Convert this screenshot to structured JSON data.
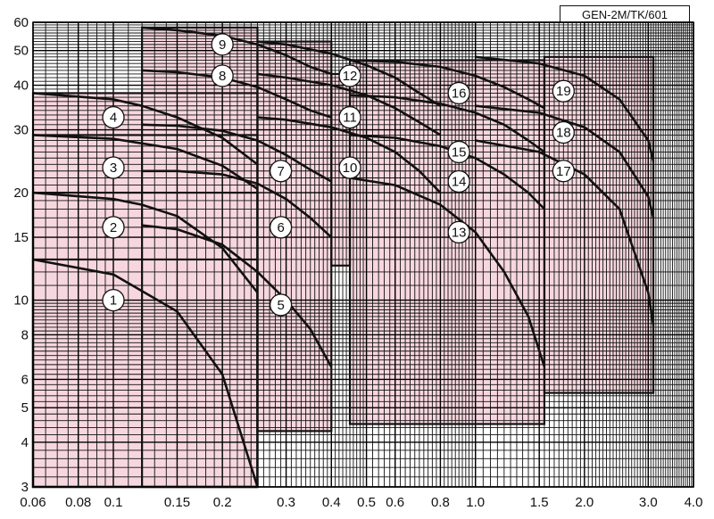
{
  "tag": "GEN-2M/TK/601",
  "chart_data": {
    "type": "area",
    "title": "",
    "xlabel": "",
    "ylabel": "",
    "x_scale": "log",
    "y_scale": "log",
    "xlim": [
      0.06,
      4.0
    ],
    "ylim": [
      3,
      60
    ],
    "x_tick_labels": [
      "0.06",
      "0.08",
      "0.1",
      "0.15",
      "0.2",
      "0.3",
      "0.4",
      "0.5",
      "0.6",
      "0.8",
      "1.0",
      "1.5",
      "2.0",
      "3.0",
      "4.0"
    ],
    "y_tick_labels": [
      "3",
      "4",
      "5",
      "6",
      "8",
      "10",
      "15",
      "20",
      "30",
      "40",
      "50",
      "60"
    ],
    "grid": true,
    "colors": {
      "fill": "#f7d7df",
      "line": "#111111",
      "grid": "#111111"
    },
    "regions": [
      {
        "x": [
          0.06,
          0.25
        ],
        "y_min": 3,
        "y_max": 13.0
      },
      {
        "x": [
          0.06,
          0.25
        ],
        "y_min": 3,
        "y_max": 20.0
      },
      {
        "x": [
          0.06,
          0.25
        ],
        "y_min": 3,
        "y_max": 29.0
      },
      {
        "x": [
          0.06,
          0.25
        ],
        "y_min": 3,
        "y_max": 38.0
      },
      {
        "x": [
          0.12,
          0.25
        ],
        "y_min": 3,
        "y_max": 58.0
      },
      {
        "x": [
          0.25,
          0.4
        ],
        "y_min": 4.3,
        "y_max": 53.0
      },
      {
        "x": [
          0.4,
          0.45
        ],
        "y_min": 12.5,
        "y_max": 43.0
      },
      {
        "x": [
          0.45,
          1.55
        ],
        "y_min": 4.5,
        "y_max": 47.0
      },
      {
        "x": [
          1.55,
          3.1
        ],
        "y_min": 5.5,
        "y_max": 48.0
      }
    ],
    "curves": [
      {
        "label": "1",
        "x": [
          0.06,
          0.1,
          0.15,
          0.2,
          0.25
        ],
        "y": [
          13.0,
          11.8,
          9.3,
          6.2,
          3.0
        ]
      },
      {
        "label": "2",
        "x": [
          0.06,
          0.1,
          0.12,
          0.15,
          0.2,
          0.25
        ],
        "y": [
          20.0,
          19.2,
          18.5,
          17.2,
          14.0,
          10.5
        ]
      },
      {
        "label": "3",
        "x": [
          0.06,
          0.1,
          0.15,
          0.2,
          0.25
        ],
        "y": [
          29.0,
          28.3,
          26.5,
          23.8,
          20.5
        ]
      },
      {
        "label": "4",
        "x": [
          0.06,
          0.1,
          0.12,
          0.15,
          0.2,
          0.25
        ],
        "y": [
          38.0,
          36.5,
          35.0,
          32.5,
          28.5,
          24.0
        ]
      },
      {
        "label": "5",
        "x": [
          0.12,
          0.15,
          0.2,
          0.25,
          0.3,
          0.35,
          0.4
        ],
        "y": [
          16.2,
          15.8,
          14.3,
          12.0,
          10.0,
          8.3,
          6.5
        ]
      },
      {
        "label": "6",
        "x": [
          0.12,
          0.15,
          0.2,
          0.25,
          0.3,
          0.35,
          0.4
        ],
        "y": [
          23.0,
          23.0,
          22.5,
          21.2,
          19.2,
          17.0,
          15.0
        ]
      },
      {
        "label": "7",
        "x": [
          0.12,
          0.15,
          0.2,
          0.25,
          0.3,
          0.35,
          0.4
        ],
        "y": [
          31.0,
          30.8,
          29.8,
          28.0,
          25.5,
          23.2,
          21.5
        ]
      },
      {
        "label": "8",
        "x": [
          0.12,
          0.15,
          0.2,
          0.25,
          0.3,
          0.35,
          0.4
        ],
        "y": [
          44.0,
          43.5,
          42.0,
          39.5,
          36.5,
          34.0,
          32.5
        ]
      },
      {
        "label": "9",
        "x": [
          0.12,
          0.15,
          0.2,
          0.25,
          0.3,
          0.35,
          0.4
        ],
        "y": [
          58.0,
          57.0,
          55.0,
          52.0,
          48.5,
          45.0,
          43.0
        ]
      },
      {
        "label": "10",
        "x": [
          0.25,
          0.3,
          0.4,
          0.5,
          0.6,
          0.7,
          0.8
        ],
        "y": [
          32.5,
          32.0,
          30.5,
          28.5,
          26.0,
          23.0,
          20.0
        ]
      },
      {
        "label": "11",
        "x": [
          0.25,
          0.3,
          0.4,
          0.5,
          0.6,
          0.7,
          0.8
        ],
        "y": [
          43.0,
          42.0,
          40.0,
          37.5,
          34.5,
          31.5,
          29.0
        ]
      },
      {
        "label": "12",
        "x": [
          0.25,
          0.3,
          0.4,
          0.5,
          0.6,
          0.7,
          0.8
        ],
        "y": [
          53.0,
          52.0,
          49.0,
          45.5,
          42.0,
          38.0,
          35.0
        ]
      },
      {
        "label": "13",
        "x": [
          0.45,
          0.6,
          0.8,
          1.0,
          1.2,
          1.4,
          1.55
        ],
        "y": [
          22.0,
          21.0,
          18.5,
          15.5,
          12.0,
          9.0,
          6.5
        ]
      },
      {
        "label": "14",
        "x": [
          0.45,
          0.6,
          0.8,
          1.0,
          1.2,
          1.4,
          1.55
        ],
        "y": [
          29.0,
          28.5,
          27.0,
          25.0,
          22.5,
          20.0,
          18.0
        ]
      },
      {
        "label": "15",
        "x": [
          0.45,
          0.6,
          0.8,
          1.0,
          1.2,
          1.4,
          1.55
        ],
        "y": [
          37.5,
          37.0,
          35.5,
          33.5,
          31.0,
          28.0,
          26.0
        ]
      },
      {
        "label": "16",
        "x": [
          0.45,
          0.6,
          0.8,
          1.0,
          1.2,
          1.4,
          1.55
        ],
        "y": [
          47.0,
          46.5,
          45.0,
          42.5,
          39.5,
          36.5,
          34.5
        ]
      },
      {
        "label": "17",
        "x": [
          1.0,
          1.5,
          2.0,
          2.5,
          3.0,
          3.1
        ],
        "y": [
          28.0,
          26.0,
          22.5,
          18.0,
          10.5,
          8.5
        ]
      },
      {
        "label": "18",
        "x": [
          1.0,
          1.5,
          2.0,
          2.5,
          3.0,
          3.1
        ],
        "y": [
          35.0,
          33.5,
          30.5,
          26.0,
          19.5,
          17.0
        ]
      },
      {
        "label": "19",
        "x": [
          1.0,
          1.5,
          2.0,
          2.5,
          3.0,
          3.1
        ],
        "y": [
          48.0,
          46.0,
          42.5,
          36.5,
          28.0,
          24.5
        ]
      }
    ],
    "annotations": [
      {
        "text": "1",
        "x": 0.1,
        "y": 10.0
      },
      {
        "text": "2",
        "x": 0.1,
        "y": 16.0
      },
      {
        "text": "3",
        "x": 0.1,
        "y": 23.5
      },
      {
        "text": "4",
        "x": 0.1,
        "y": 32.5
      },
      {
        "text": "5",
        "x": 0.29,
        "y": 9.7
      },
      {
        "text": "6",
        "x": 0.29,
        "y": 16.0
      },
      {
        "text": "7",
        "x": 0.29,
        "y": 23.0
      },
      {
        "text": "8",
        "x": 0.2,
        "y": 42.5
      },
      {
        "text": "9",
        "x": 0.2,
        "y": 52.0
      },
      {
        "text": "10",
        "x": 0.45,
        "y": 23.5
      },
      {
        "text": "11",
        "x": 0.45,
        "y": 32.5
      },
      {
        "text": "12",
        "x": 0.45,
        "y": 42.5
      },
      {
        "text": "13",
        "x": 0.9,
        "y": 15.5
      },
      {
        "text": "14",
        "x": 0.9,
        "y": 21.5
      },
      {
        "text": "15",
        "x": 0.9,
        "y": 26.0
      },
      {
        "text": "16",
        "x": 0.9,
        "y": 38.0
      },
      {
        "text": "17",
        "x": 1.75,
        "y": 23.0
      },
      {
        "text": "18",
        "x": 1.75,
        "y": 29.5
      },
      {
        "text": "19",
        "x": 1.75,
        "y": 38.5
      }
    ]
  }
}
